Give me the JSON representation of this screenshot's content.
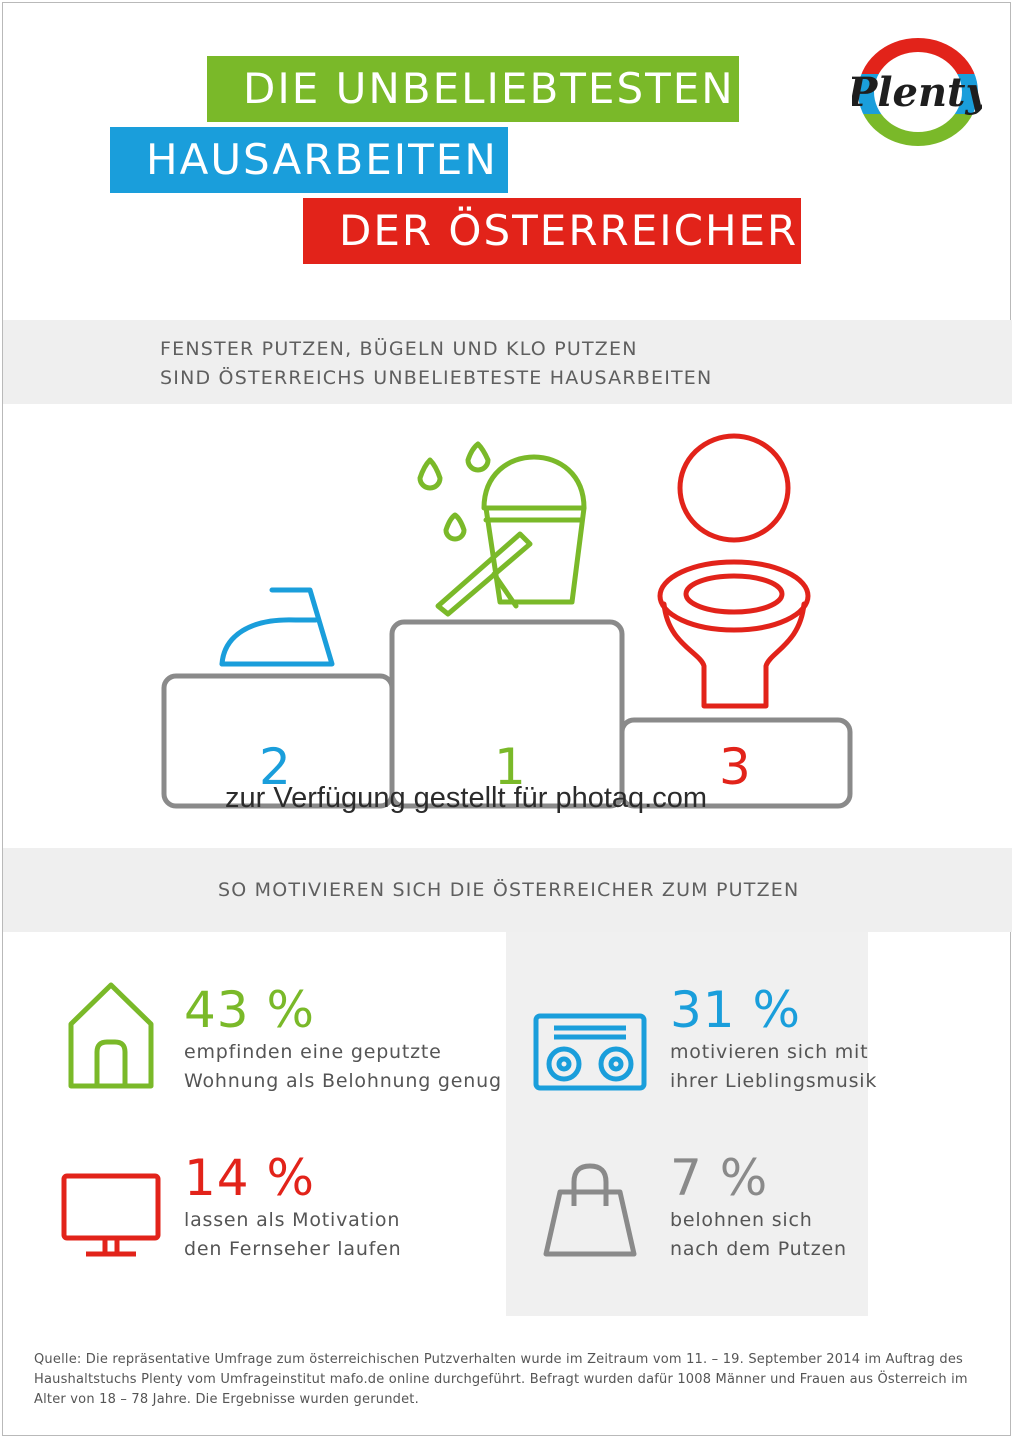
{
  "title": {
    "line1": "DIE UNBELIEBTESTEN",
    "line2": "HAUSARBEITEN",
    "line3": "DER ÖSTERREICHER"
  },
  "logo": {
    "text": "Plenty"
  },
  "section1": {
    "line1": "FENSTER PUTZEN, BÜGELN UND KLO PUTZEN",
    "line2": "SIND ÖSTERREICHS UNBELIEBTESTE HAUSARBEITEN"
  },
  "podium": [
    {
      "rank": "1",
      "icon": "bucket-squeegee-icon",
      "color": "#7ab929"
    },
    {
      "rank": "2",
      "icon": "iron-icon",
      "color": "#1a9edb"
    },
    {
      "rank": "3",
      "icon": "toilet-icon",
      "color": "#e2231a"
    }
  ],
  "watermark": "zur Verfügung gestellt für photaq.com",
  "section2": {
    "heading": "SO MOTIVIEREN SICH DIE ÖSTERREICHER ZUM PUTZEN"
  },
  "stats": [
    {
      "value": "43 %",
      "line1": "empfinden eine geputzte",
      "line2": "Wohnung als Belohnung genug",
      "icon": "house-icon",
      "color": "#7ab929"
    },
    {
      "value": "31 %",
      "line1": "motivieren sich mit",
      "line2": "ihrer Lieblingsmusik",
      "icon": "stereo-icon",
      "color": "#1a9edb"
    },
    {
      "value": "14 %",
      "line1": "lassen als Motivation",
      "line2": "den Fernseher laufen",
      "icon": "tv-icon",
      "color": "#e2231a"
    },
    {
      "value": "7 %",
      "line1": "belohnen sich",
      "line2": "nach dem Putzen",
      "icon": "shopping-bag-icon",
      "color": "#8a8a8a"
    }
  ],
  "source": "Quelle: Die repräsentative Umfrage zum österreichischen Putzverhalten wurde im Zeitraum vom 11. – 19. September 2014 im Auftrag des Haushaltstuchs Plenty vom Umfrageinstitut mafo.de online durchgeführt. Befragt wurden dafür 1008 Männer und Frauen aus Österreich im Alter von 18 – 78 Jahre. Die Ergebnisse wurden gerundet."
}
